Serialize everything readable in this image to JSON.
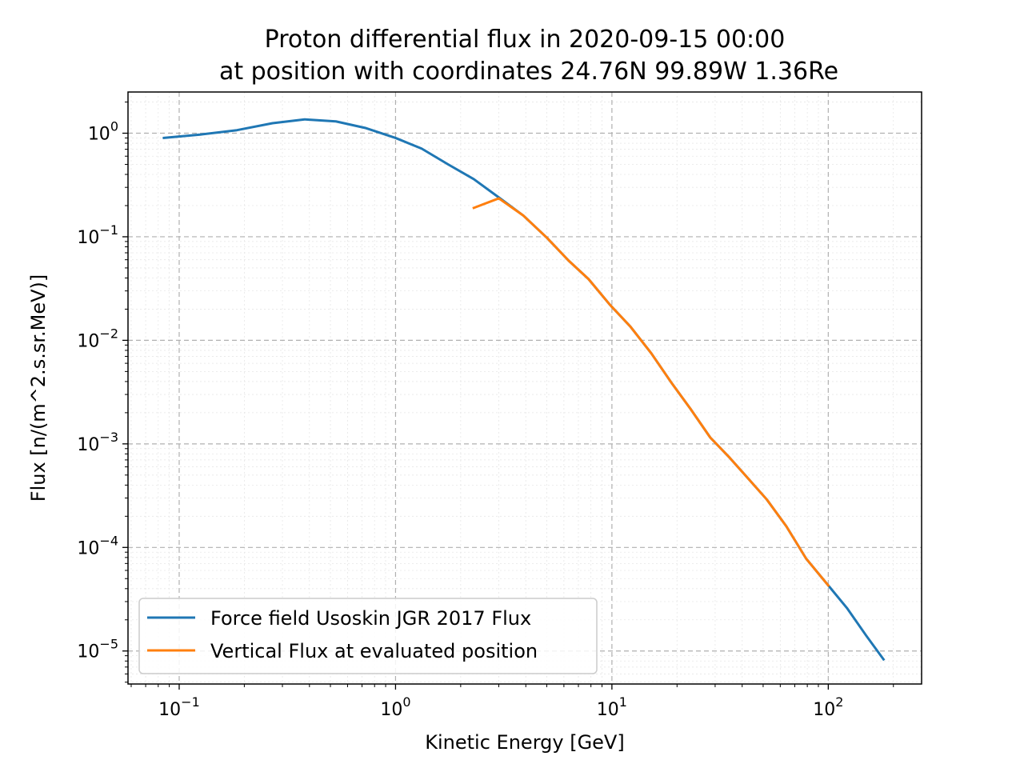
{
  "chart_data": {
    "type": "line",
    "title_line1": "Proton differential flux in 2020-09-15 00:00",
    "title_line2": "at position with coordinates 24.76N 99.89W 1.36Re",
    "xlabel": "Kinetic Energy [GeV]",
    "ylabel": "Flux [n/(m^2.s.sr.MeV)]",
    "xscale": "log",
    "yscale": "log",
    "xlim": [
      0.058,
      270
    ],
    "ylim": [
      4.8e-06,
      2.5
    ],
    "grid": true,
    "legend_position": "lower-left",
    "x_ticks": [
      {
        "value": 0.1,
        "base": "10",
        "exp": "−1"
      },
      {
        "value": 1,
        "base": "10",
        "exp": "0"
      },
      {
        "value": 10,
        "base": "10",
        "exp": "1"
      },
      {
        "value": 100,
        "base": "10",
        "exp": "2"
      }
    ],
    "y_ticks": [
      {
        "value": 1,
        "base": "10",
        "exp": "0"
      },
      {
        "value": 0.1,
        "base": "10",
        "exp": "−1"
      },
      {
        "value": 0.01,
        "base": "10",
        "exp": "−2"
      },
      {
        "value": 0.001,
        "base": "10",
        "exp": "−3"
      },
      {
        "value": 0.0001,
        "base": "10",
        "exp": "−4"
      },
      {
        "value": 1e-05,
        "base": "10",
        "exp": "−5"
      }
    ],
    "series": [
      {
        "name": "Force field Usoskin JGR 2017 Flux",
        "color": "#1f77b4",
        "points": [
          [
            0.085,
            0.9
          ],
          [
            0.125,
            0.97
          ],
          [
            0.185,
            1.07
          ],
          [
            0.27,
            1.25
          ],
          [
            0.38,
            1.36
          ],
          [
            0.53,
            1.3
          ],
          [
            0.73,
            1.12
          ],
          [
            1.0,
            0.9
          ],
          [
            1.32,
            0.71
          ],
          [
            1.75,
            0.5
          ],
          [
            2.3,
            0.36
          ],
          [
            3.0,
            0.24
          ],
          [
            3.9,
            0.16
          ],
          [
            5.0,
            0.098
          ],
          [
            6.3,
            0.059
          ],
          [
            7.8,
            0.039
          ],
          [
            9.8,
            0.022
          ],
          [
            12.2,
            0.0135
          ],
          [
            15.2,
            0.0075
          ],
          [
            19.0,
            0.0038
          ],
          [
            23.0,
            0.0022
          ],
          [
            28.5,
            0.00115
          ],
          [
            34.5,
            0.00076
          ],
          [
            42.0,
            0.00048
          ],
          [
            52.0,
            0.00029
          ],
          [
            64.0,
            0.00016
          ],
          [
            79.0,
            7.8e-05
          ],
          [
            100.0,
            4.3e-05
          ],
          [
            122.0,
            2.6e-05
          ],
          [
            150.0,
            1.4e-05
          ],
          [
            180.0,
            8.3e-06
          ]
        ]
      },
      {
        "name": "Vertical Flux at evaluated position",
        "color": "#ff7f0e",
        "points": [
          [
            2.3,
            0.19
          ],
          [
            3.0,
            0.235
          ],
          [
            3.9,
            0.16
          ],
          [
            5.0,
            0.098
          ],
          [
            6.3,
            0.059
          ],
          [
            7.8,
            0.039
          ],
          [
            9.8,
            0.022
          ],
          [
            12.2,
            0.0135
          ],
          [
            15.2,
            0.0075
          ],
          [
            19.0,
            0.0038
          ],
          [
            23.0,
            0.0022
          ],
          [
            28.5,
            0.00115
          ],
          [
            34.5,
            0.00076
          ],
          [
            42.0,
            0.00048
          ],
          [
            52.0,
            0.00029
          ],
          [
            64.0,
            0.00016
          ],
          [
            79.0,
            7.8e-05
          ],
          [
            100.0,
            4.3e-05
          ]
        ]
      }
    ]
  }
}
